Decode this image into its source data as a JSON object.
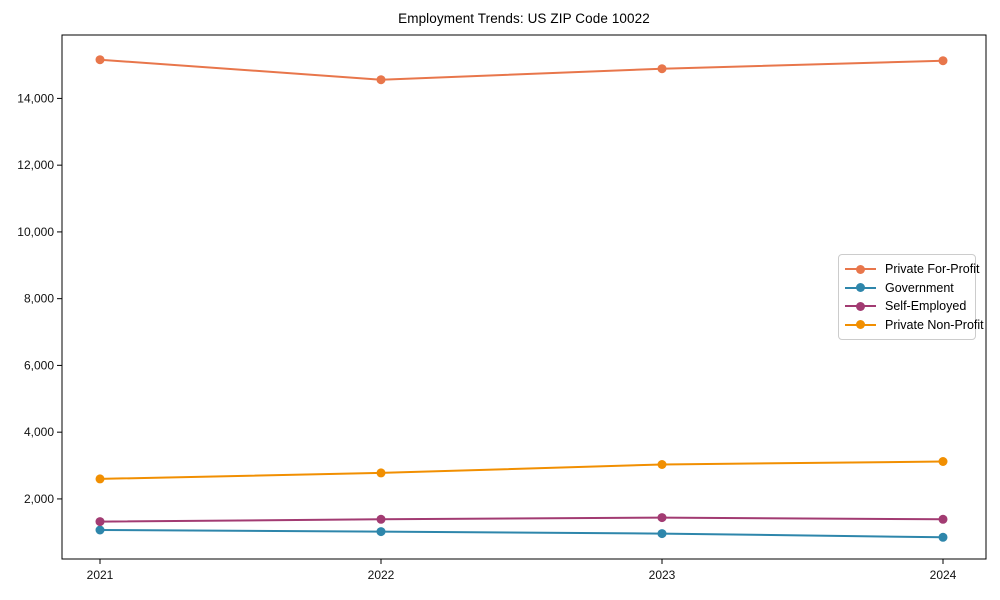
{
  "chart_data": {
    "type": "line",
    "title": "Employment Trends: US ZIP Code 10022",
    "categories": [
      "2021",
      "2022",
      "2023",
      "2024"
    ],
    "series": [
      {
        "name": "Private For-Profit",
        "color": "#E8764B",
        "values": [
          15160,
          14560,
          14890,
          15130
        ]
      },
      {
        "name": "Government",
        "color": "#2E86AB",
        "values": [
          1070,
          1020,
          960,
          850
        ]
      },
      {
        "name": "Self-Employed",
        "color": "#A23B72",
        "values": [
          1320,
          1390,
          1440,
          1390
        ]
      },
      {
        "name": "Private Non-Profit",
        "color": "#F18F01",
        "values": [
          2600,
          2780,
          3030,
          3120
        ]
      }
    ],
    "xlabel": "",
    "ylabel": "",
    "ylim": [
      200,
      15900
    ],
    "yticks": [
      2000,
      4000,
      6000,
      8000,
      10000,
      12000,
      14000
    ],
    "ytick_labels": [
      "2,000",
      "4,000",
      "6,000",
      "8,000",
      "10,000",
      "12,000",
      "14,000"
    ],
    "grid": false,
    "legend_position": "center-right",
    "marker": "circle",
    "line_width": 2,
    "axis_color": "#000000"
  }
}
